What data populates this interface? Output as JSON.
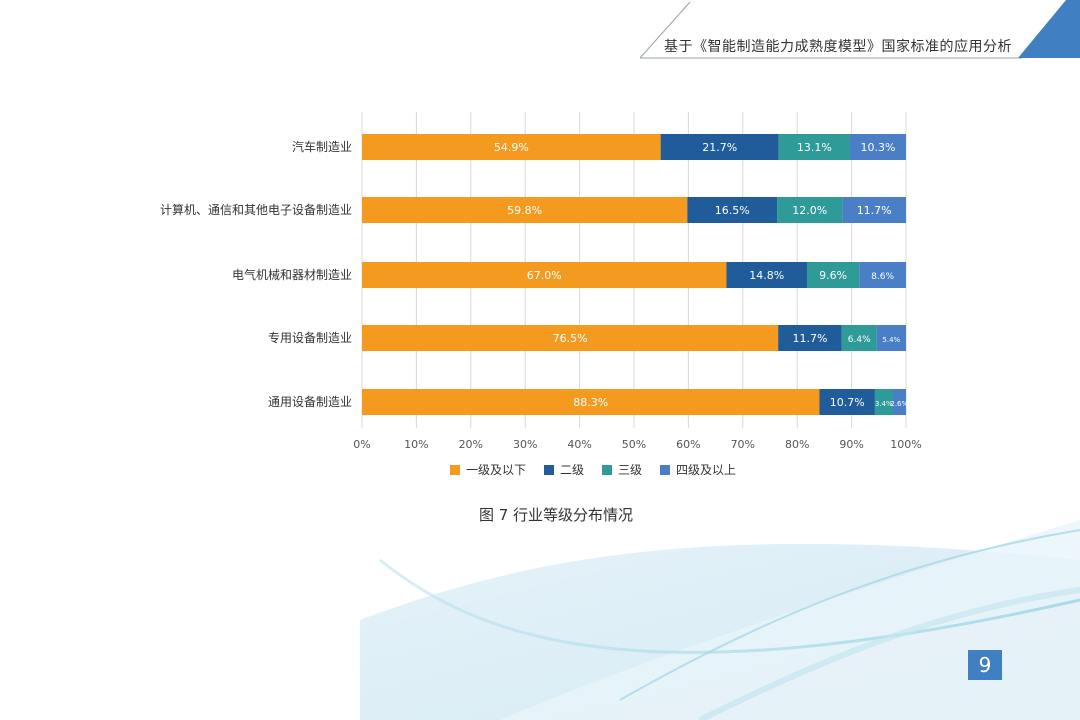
{
  "header": {
    "title": "基于《智能制造能力成熟度模型》国家标准的应用分析"
  },
  "caption": "图 7 行业等级分布情况",
  "page_number": "9",
  "colors": {
    "accent": "#3f7fc2",
    "header_triangle": "#3f7fc2"
  },
  "chart_data": {
    "type": "bar",
    "orientation": "horizontal",
    "stacked": true,
    "percent": true,
    "categories": [
      "汽车制造业",
      "计算机、通信和其他电子设备制造业",
      "电气机械和器材制造业",
      "专用设备制造业",
      "通用设备制造业"
    ],
    "series": [
      {
        "name": "一级及以下",
        "color": "#f39a1f",
        "values": [
          54.9,
          59.8,
          67.0,
          76.5,
          88.3
        ],
        "labels": [
          "54.9%",
          "59.8%",
          "67.0%",
          "76.5%",
          "88.3%"
        ]
      },
      {
        "name": "二级",
        "color": "#1f5c99",
        "values": [
          21.7,
          16.5,
          14.8,
          11.7,
          10.7
        ],
        "labels": [
          "21.7%",
          "16.5%",
          "14.8%",
          "11.7%",
          "10.7%"
        ]
      },
      {
        "name": "三级",
        "color": "#2e9b98",
        "values": [
          13.1,
          12.0,
          9.6,
          6.4,
          3.4
        ],
        "labels": [
          "13.1%",
          "12.0%",
          "9.6%",
          "6.4%",
          "3.4%"
        ]
      },
      {
        "name": "四级及以上",
        "color": "#4a7ec7",
        "values": [
          10.3,
          11.7,
          8.6,
          5.4,
          2.6
        ],
        "labels": [
          "10.3%",
          "11.7%",
          "8.6%",
          "5.4%",
          "2.6%"
        ]
      }
    ],
    "xticks": [
      "0%",
      "10%",
      "20%",
      "30%",
      "40%",
      "50%",
      "60%",
      "70%",
      "80%",
      "90%",
      "100%"
    ],
    "xlim": [
      0,
      100
    ],
    "grid": true,
    "legend": "bottom"
  }
}
